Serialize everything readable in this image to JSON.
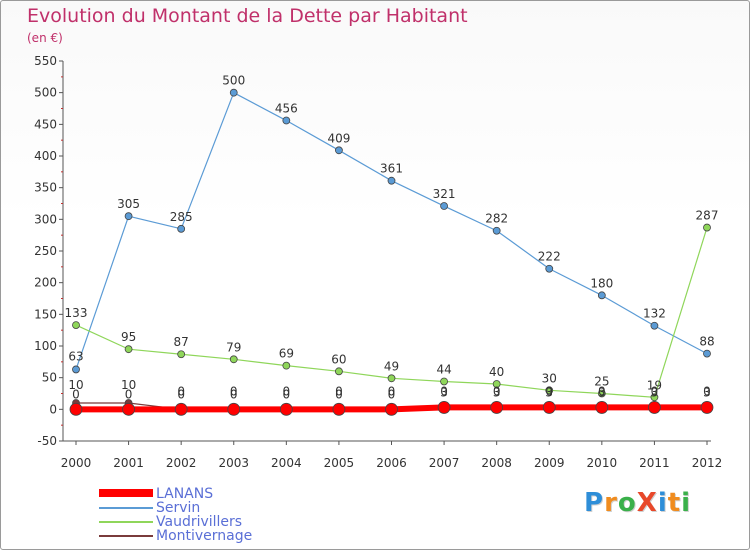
{
  "title": "Evolution du Montant de la Dette par Habitant",
  "subtitle": "(en €)",
  "logo": {
    "text": "ProXiti",
    "letters": [
      "P",
      "r",
      "o",
      "X",
      "i",
      "t",
      "i"
    ],
    "colors": [
      "#2e8ed8",
      "#f08c1e",
      "#3ab04a",
      "#e8482a",
      "#2e8ed8",
      "#f08c1e",
      "#3ab04a"
    ]
  },
  "chart_data": {
    "type": "line",
    "title": "Evolution du Montant de la Dette par Habitant",
    "subtitle": "(en €)",
    "x": [
      "2000",
      "2001",
      "2002",
      "2003",
      "2004",
      "2005",
      "2006",
      "2007",
      "2008",
      "2009",
      "2010",
      "2011",
      "2012"
    ],
    "ylim": [
      -50,
      550
    ],
    "yticks": [
      -50,
      0,
      50,
      100,
      150,
      200,
      250,
      300,
      350,
      400,
      450,
      500,
      550
    ],
    "grid": false,
    "legend_position": "bottom-left",
    "series": [
      {
        "name": "LANANS",
        "color": "#ff0000",
        "values": [
          0,
          0,
          0,
          0,
          0,
          0,
          0,
          3,
          3,
          3,
          3,
          3,
          3
        ]
      },
      {
        "name": "Servin",
        "color": "#5b9bd5",
        "values": [
          63,
          305,
          285,
          500,
          456,
          409,
          361,
          321,
          282,
          222,
          180,
          132,
          88
        ]
      },
      {
        "name": "Vaudrivillers",
        "color": "#8fd65a",
        "values": [
          133,
          95,
          87,
          79,
          69,
          60,
          49,
          44,
          40,
          30,
          25,
          19,
          287
        ]
      },
      {
        "name": "Montivernage",
        "color": "#7a3b3b",
        "values": [
          10,
          10,
          0,
          0,
          0,
          0,
          0,
          0,
          0,
          0,
          0,
          0,
          0
        ]
      }
    ],
    "data_labels": {
      "Servin": [
        "63",
        "305",
        "285",
        "500",
        "456",
        "409",
        "361",
        "321",
        "282",
        "222",
        "180",
        "132",
        "88"
      ],
      "Vaudrivillers": [
        "133",
        "95",
        "87",
        "79",
        "69",
        "60",
        "49",
        "44",
        "40",
        "30",
        "25",
        "19",
        "287"
      ],
      "LANANS": [
        "0",
        "0",
        "0",
        "0",
        "0",
        "0",
        "0",
        "3",
        "3",
        "3",
        "3",
        "3",
        "3"
      ],
      "Montivernage": [
        "10",
        "10",
        "0",
        "0",
        "0",
        "0",
        "0",
        "0",
        "0",
        "0",
        "0",
        "0",
        "0"
      ]
    }
  }
}
